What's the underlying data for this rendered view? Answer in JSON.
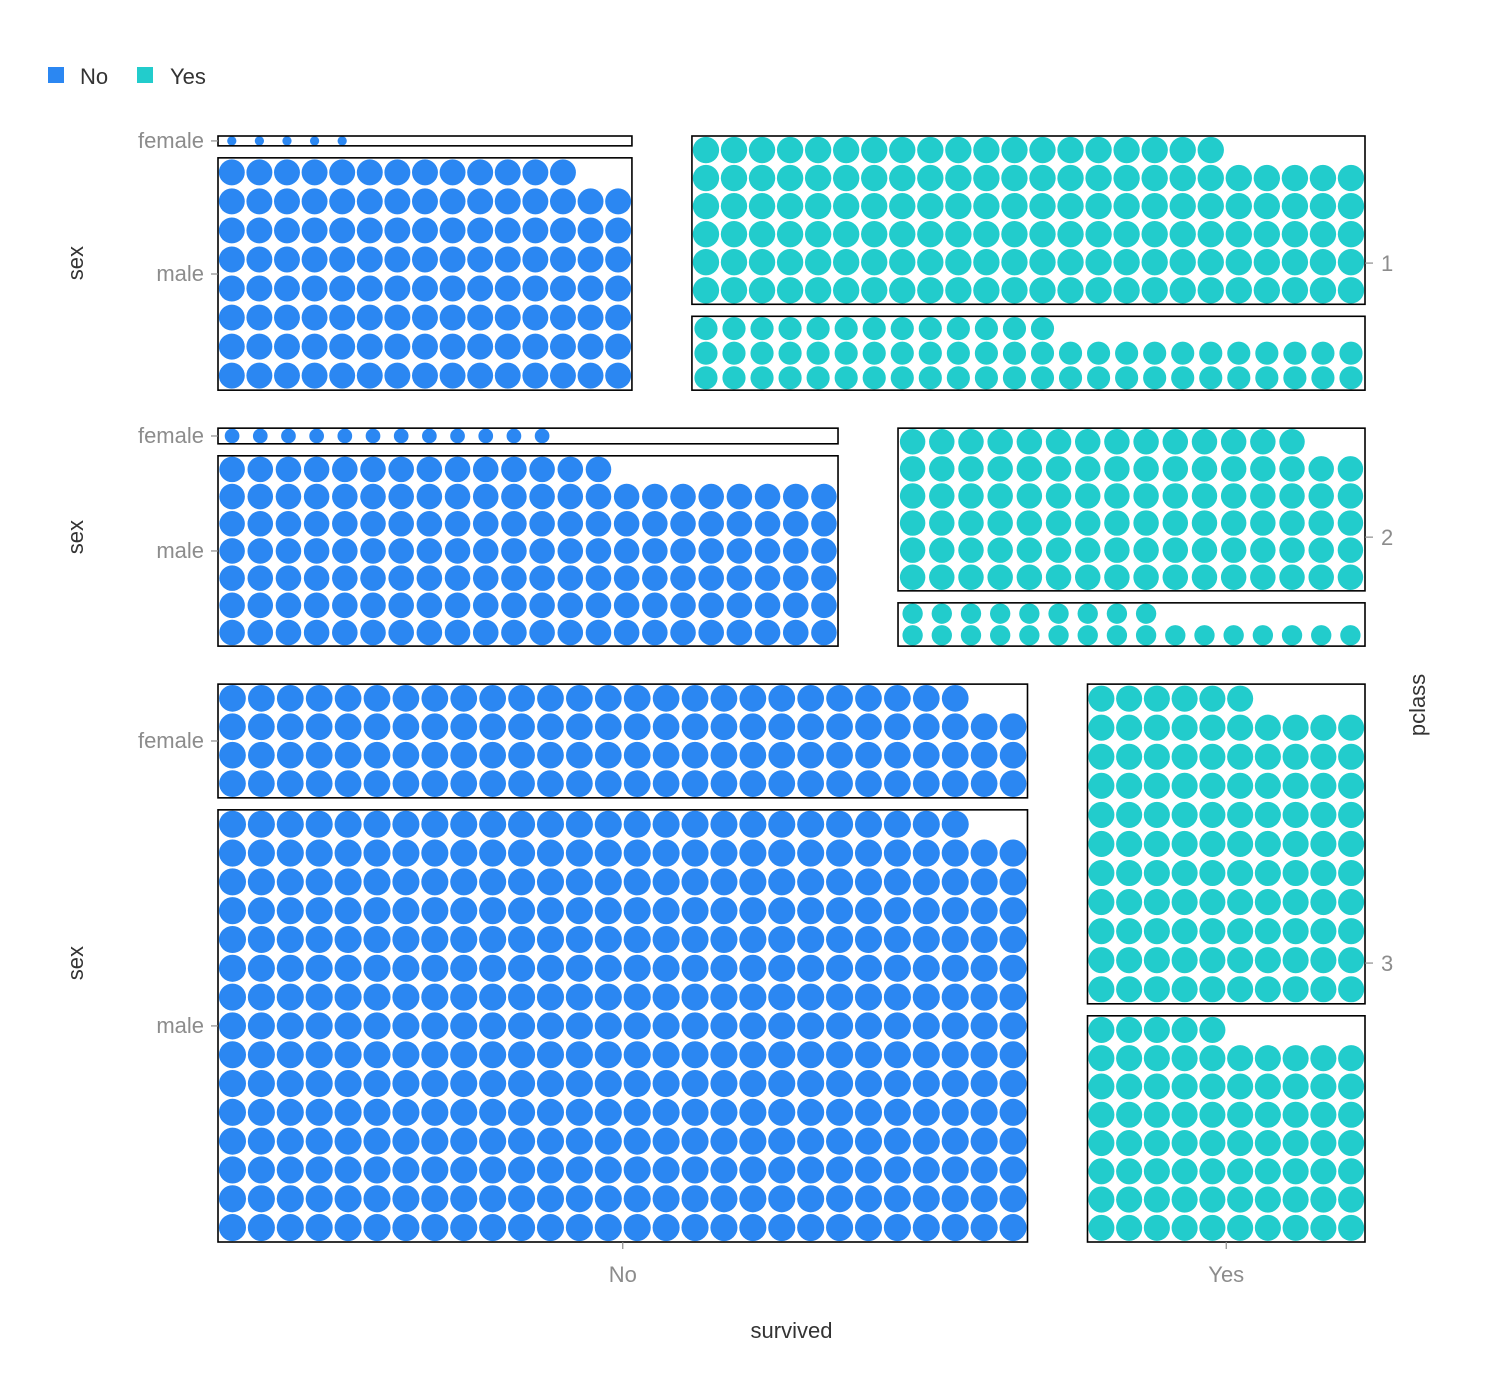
{
  "chart_data": {
    "type": "mosaic-dot",
    "xlabel": "survived",
    "ylabel": "sex",
    "facet_label": "pclass",
    "x_categories": [
      "No",
      "Yes"
    ],
    "y_categories": [
      "female",
      "male"
    ],
    "facet_categories": [
      "1",
      "2",
      "3"
    ],
    "legend": {
      "position": "top-left",
      "entries": [
        {
          "label": "No",
          "color": "#2b87f2"
        },
        {
          "label": "Yes",
          "color": "#22cccc"
        }
      ]
    },
    "colors": {
      "No": "#2b87f2",
      "Yes": "#22cccc"
    },
    "counts": [
      {
        "pclass": "1",
        "survived": "No",
        "sex": "female",
        "count": 5
      },
      {
        "pclass": "1",
        "survived": "No",
        "sex": "male",
        "count": 118
      },
      {
        "pclass": "1",
        "survived": "Yes",
        "sex": "female",
        "count": 139
      },
      {
        "pclass": "1",
        "survived": "Yes",
        "sex": "male",
        "count": 61
      },
      {
        "pclass": "2",
        "survived": "No",
        "sex": "female",
        "count": 12
      },
      {
        "pclass": "2",
        "survived": "No",
        "sex": "male",
        "count": 146
      },
      {
        "pclass": "2",
        "survived": "Yes",
        "sex": "female",
        "count": 94
      },
      {
        "pclass": "2",
        "survived": "Yes",
        "sex": "male",
        "count": 25
      },
      {
        "pclass": "3",
        "survived": "No",
        "sex": "female",
        "count": 110
      },
      {
        "pclass": "3",
        "survived": "No",
        "sex": "male",
        "count": 418
      },
      {
        "pclass": "3",
        "survived": "Yes",
        "sex": "female",
        "count": 106
      },
      {
        "pclass": "3",
        "survived": "Yes",
        "sex": "male",
        "count": 75
      }
    ]
  }
}
